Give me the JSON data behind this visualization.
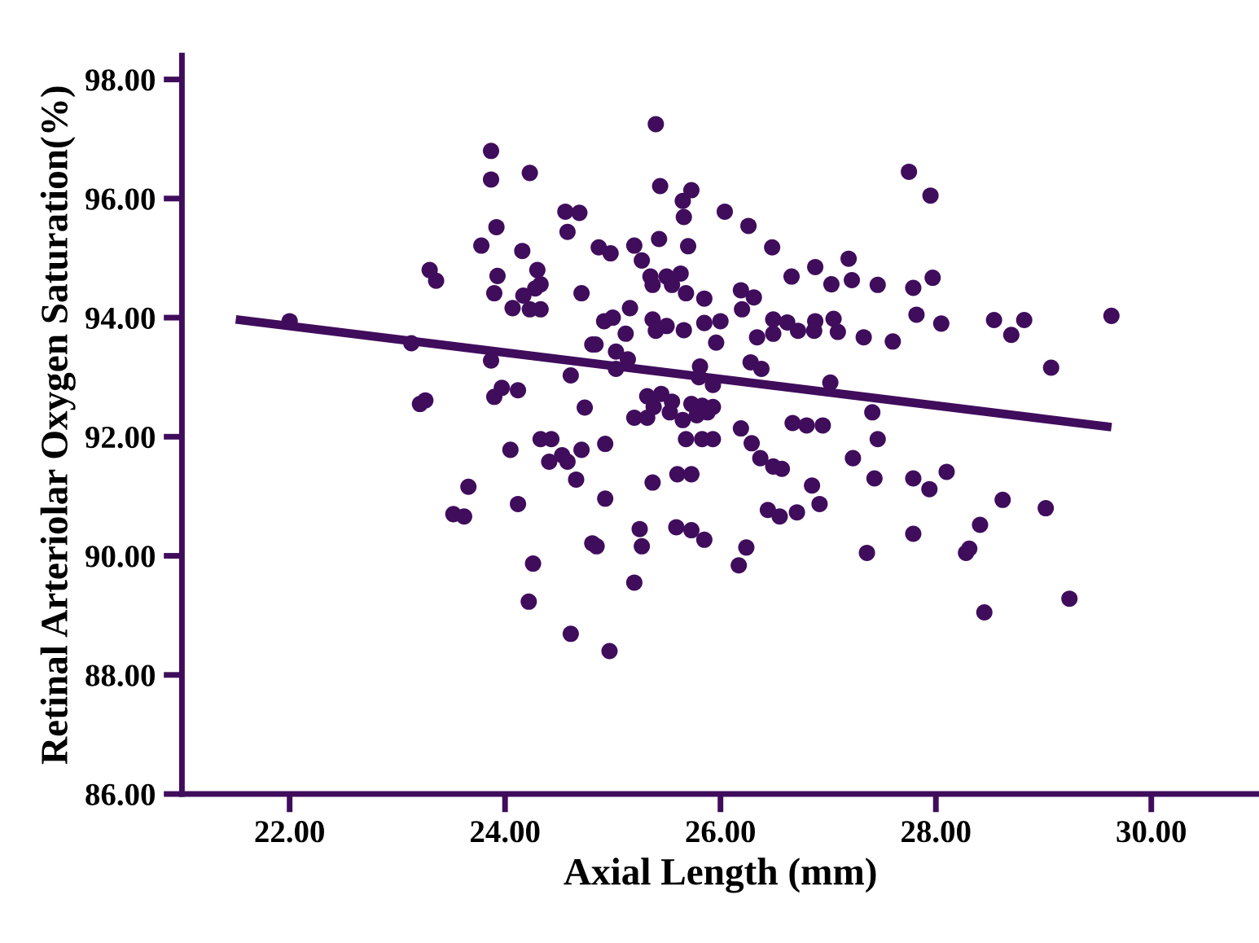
{
  "chart_data": {
    "type": "scatter",
    "xlabel": "Axial Length (mm)",
    "ylabel": "Retinal Arteriolar Oxygen Saturation(%)",
    "xlim": [
      21,
      31
    ],
    "ylim": [
      86,
      98.4
    ],
    "xticks": [
      {
        "value": 22,
        "label": "22.00"
      },
      {
        "value": 24,
        "label": "24.00"
      },
      {
        "value": 26,
        "label": "26.00"
      },
      {
        "value": 28,
        "label": "28.00"
      },
      {
        "value": 30,
        "label": "30.00"
      }
    ],
    "yticks": [
      {
        "value": 86,
        "label": "86.00"
      },
      {
        "value": 88,
        "label": "88.00"
      },
      {
        "value": 90,
        "label": "90.00"
      },
      {
        "value": 92,
        "label": "92.00"
      },
      {
        "value": 94,
        "label": "94.00"
      },
      {
        "value": 96,
        "label": "96.00"
      },
      {
        "value": 98,
        "label": "98.00"
      }
    ],
    "grid": false,
    "legend": false,
    "marker": "circle",
    "series": [
      {
        "color": "#400c5c",
        "x": [
          22.0,
          23.13,
          23.21,
          23.26,
          23.3,
          23.36,
          23.52,
          23.62,
          23.66,
          23.78,
          23.87,
          23.87,
          23.92,
          23.93,
          23.9,
          23.87,
          23.9,
          23.97,
          24.12,
          24.05,
          24.12,
          24.16,
          24.23,
          24.28,
          24.07,
          24.17,
          24.23,
          24.33,
          24.3,
          24.33,
          24.26,
          24.22,
          24.33,
          24.43,
          24.41,
          24.53,
          24.58,
          24.66,
          24.71,
          24.61,
          24.56,
          24.69,
          24.58,
          24.61,
          24.74,
          24.71,
          24.81,
          24.81,
          25.44,
          25.73,
          25.65,
          25.66,
          26.04,
          26.26,
          26.48,
          26.66,
          26.88,
          27.19,
          27.03,
          27.22,
          27.46,
          24.87,
          24.98,
          25.2,
          25.27,
          25.43,
          25.7,
          25.35,
          25.5,
          25.63,
          25.37,
          25.55,
          25.68,
          25.85,
          26.19,
          26.31,
          26.2,
          25.16,
          24.92,
          25.0,
          25.37,
          25.5,
          25.66,
          25.85,
          26.0,
          25.4,
          25.96,
          26.49,
          26.62,
          26.72,
          26.88,
          27.05,
          27.09,
          26.87,
          26.34,
          26.49,
          27.33,
          25.12,
          24.84,
          25.03,
          25.14,
          25.03,
          25.81,
          26.28,
          26.38,
          27.02,
          25.8,
          25.93,
          25.32,
          25.45,
          25.55,
          25.38,
          25.53,
          25.73,
          25.83,
          25.93,
          25.2,
          25.32,
          25.65,
          25.78,
          25.88,
          25.68,
          25.83,
          25.93,
          24.93,
          26.19,
          26.29,
          26.37,
          26.49,
          26.57,
          26.67,
          26.8,
          26.95,
          27.41,
          27.46,
          27.23,
          27.43,
          25.37,
          25.6,
          25.73,
          24.93,
          26.85,
          26.92,
          26.44,
          26.55,
          26.71,
          25.59,
          25.73,
          25.85,
          25.25,
          25.27,
          24.85,
          26.24,
          26.17,
          27.36,
          25.2,
          24.97,
          25.4,
          27.6,
          27.79,
          27.97,
          27.82,
          28.05,
          28.54,
          28.82,
          28.7,
          29.63,
          29.07,
          27.79,
          27.94,
          28.1,
          27.79,
          28.62,
          28.41,
          28.28,
          28.31,
          29.02,
          28.45,
          29.24,
          27.75,
          27.95
        ],
        "values": [
          93.94,
          93.57,
          92.55,
          92.61,
          94.8,
          94.62,
          90.7,
          90.66,
          91.16,
          95.21,
          96.8,
          96.32,
          95.52,
          94.7,
          94.41,
          93.28,
          92.67,
          92.82,
          92.78,
          91.78,
          90.87,
          95.12,
          96.43,
          94.49,
          94.16,
          94.37,
          94.14,
          94.14,
          94.8,
          94.56,
          89.87,
          89.23,
          91.96,
          91.96,
          91.58,
          91.69,
          91.58,
          91.28,
          91.78,
          88.69,
          95.78,
          95.76,
          95.44,
          93.03,
          92.49,
          94.41,
          93.55,
          90.21,
          96.21,
          96.14,
          95.96,
          95.69,
          95.78,
          95.54,
          95.18,
          94.69,
          94.85,
          94.99,
          94.56,
          94.63,
          94.55,
          95.18,
          95.08,
          95.21,
          94.96,
          95.32,
          95.2,
          94.69,
          94.69,
          94.74,
          94.55,
          94.55,
          94.41,
          94.32,
          94.46,
          94.34,
          94.14,
          94.16,
          93.94,
          94.0,
          93.97,
          93.86,
          93.79,
          93.91,
          93.94,
          93.78,
          93.58,
          93.97,
          93.92,
          93.78,
          93.94,
          93.98,
          93.76,
          93.78,
          93.67,
          93.73,
          93.67,
          93.73,
          93.55,
          93.43,
          93.3,
          93.14,
          93.18,
          93.25,
          93.14,
          92.91,
          93.0,
          92.87,
          92.68,
          92.72,
          92.59,
          92.5,
          92.41,
          92.55,
          92.52,
          92.5,
          92.32,
          92.32,
          92.28,
          92.36,
          92.41,
          91.96,
          91.96,
          91.96,
          91.88,
          92.14,
          91.89,
          91.64,
          91.5,
          91.46,
          92.23,
          92.19,
          92.19,
          92.41,
          91.96,
          91.64,
          91.3,
          91.23,
          91.37,
          91.37,
          90.96,
          91.18,
          90.87,
          90.77,
          90.66,
          90.73,
          90.48,
          90.43,
          90.27,
          90.45,
          90.16,
          90.16,
          90.14,
          89.84,
          90.05,
          89.55,
          88.4,
          97.25,
          93.6,
          94.5,
          94.67,
          94.05,
          93.9,
          93.96,
          93.96,
          93.71,
          94.03,
          93.16,
          91.3,
          91.12,
          91.41,
          90.37,
          90.94,
          90.52,
          90.05,
          90.12,
          90.8,
          89.05,
          89.28,
          96.45,
          96.05
        ]
      },
      {
        "type": "line",
        "color": "#400c5c",
        "x": [
          21.5,
          29.63
        ],
        "values": [
          93.97,
          92.16
        ],
        "marker": "none"
      }
    ]
  }
}
